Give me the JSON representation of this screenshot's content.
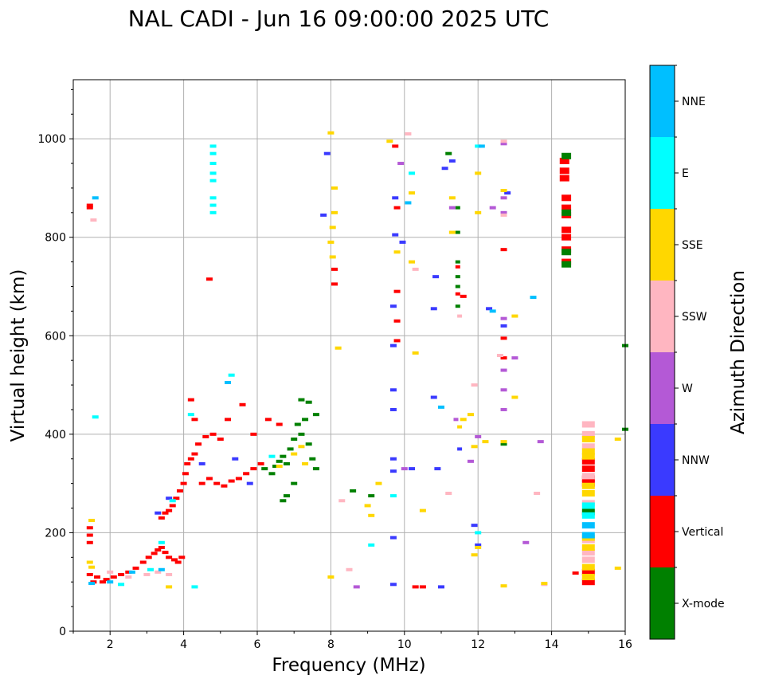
{
  "chart_data": {
    "type": "scatter",
    "title": "NAL CADI - Jun 16 09:00:00 2025 UTC",
    "xlabel": "Frequency (MHz)",
    "ylabel": "Virtual height (km)",
    "xlim": [
      1,
      16
    ],
    "ylim": [
      0,
      1120
    ],
    "xticks": [
      2,
      4,
      6,
      8,
      10,
      12,
      14,
      16
    ],
    "yticks": [
      0,
      200,
      400,
      600,
      800,
      1000
    ],
    "grid": true,
    "colorbar": {
      "label": "Azimuth Direction",
      "placement": "right",
      "categories": [
        {
          "name": "X-mode",
          "color": "#008000"
        },
        {
          "name": "Vertical",
          "color": "#ff0000"
        },
        {
          "name": "NNW",
          "color": "#3a3aff"
        },
        {
          "name": "W",
          "color": "#b459d6"
        },
        {
          "name": "SSW",
          "color": "#ffb6c1"
        },
        {
          "name": "SSE",
          "color": "#ffd700"
        },
        {
          "name": "E",
          "color": "#00ffff"
        },
        {
          "name": "NNE",
          "color": "#00bfff"
        }
      ]
    },
    "series": [
      {
        "name": "Vertical",
        "points": [
          [
            1.45,
            865
          ],
          [
            1.45,
            860
          ],
          [
            1.45,
            210
          ],
          [
            1.45,
            195
          ],
          [
            1.45,
            180
          ],
          [
            1.45,
            115
          ],
          [
            1.55,
            100
          ],
          [
            1.65,
            110
          ],
          [
            1.8,
            100
          ],
          [
            1.9,
            105
          ],
          [
            2.1,
            110
          ],
          [
            2.3,
            115
          ],
          [
            2.5,
            120
          ],
          [
            2.7,
            128
          ],
          [
            2.9,
            140
          ],
          [
            3.05,
            150
          ],
          [
            3.2,
            158
          ],
          [
            3.3,
            165
          ],
          [
            3.4,
            170
          ],
          [
            3.5,
            160
          ],
          [
            3.6,
            150
          ],
          [
            3.75,
            145
          ],
          [
            3.85,
            140
          ],
          [
            3.95,
            150
          ],
          [
            3.4,
            230
          ],
          [
            3.5,
            240
          ],
          [
            3.6,
            245
          ],
          [
            3.7,
            255
          ],
          [
            3.8,
            270
          ],
          [
            3.9,
            285
          ],
          [
            4.0,
            300
          ],
          [
            4.05,
            320
          ],
          [
            4.1,
            340
          ],
          [
            4.2,
            350
          ],
          [
            4.3,
            360
          ],
          [
            4.4,
            380
          ],
          [
            4.2,
            470
          ],
          [
            4.3,
            430
          ],
          [
            4.6,
            395
          ],
          [
            4.8,
            400
          ],
          [
            4.5,
            300
          ],
          [
            4.7,
            310
          ],
          [
            4.9,
            300
          ],
          [
            5.1,
            295
          ],
          [
            5.3,
            305
          ],
          [
            5.5,
            310
          ],
          [
            5.7,
            320
          ],
          [
            5.9,
            330
          ],
          [
            6.1,
            340
          ],
          [
            5.0,
            390
          ],
          [
            5.2,
            430
          ],
          [
            5.6,
            460
          ],
          [
            5.9,
            400
          ],
          [
            6.3,
            430
          ],
          [
            6.6,
            420
          ],
          [
            4.7,
            715
          ],
          [
            8.1,
            735
          ],
          [
            8.1,
            705
          ],
          [
            9.75,
            985
          ],
          [
            9.8,
            860
          ],
          [
            9.8,
            690
          ],
          [
            9.8,
            630
          ],
          [
            9.8,
            590
          ],
          [
            10.3,
            90
          ],
          [
            10.5,
            90
          ],
          [
            11.45,
            740
          ],
          [
            11.45,
            685
          ],
          [
            11.6,
            680
          ],
          [
            12.7,
            775
          ],
          [
            12.7,
            595
          ],
          [
            12.7,
            555
          ],
          [
            14.35,
            955
          ],
          [
            14.35,
            935
          ],
          [
            14.35,
            920
          ],
          [
            14.4,
            880
          ],
          [
            14.4,
            860
          ],
          [
            14.4,
            845
          ],
          [
            14.4,
            815
          ],
          [
            14.4,
            800
          ],
          [
            14.4,
            775
          ],
          [
            14.4,
            750
          ],
          [
            15.0,
            345
          ],
          [
            15.0,
            330
          ],
          [
            15.0,
            310
          ],
          [
            15.0,
            300
          ],
          [
            15.0,
            120
          ],
          [
            15.0,
            100
          ],
          [
            14.65,
            118
          ]
        ]
      },
      {
        "name": "X-mode",
        "points": [
          [
            6.2,
            330
          ],
          [
            6.4,
            320
          ],
          [
            6.5,
            335
          ],
          [
            6.6,
            345
          ],
          [
            6.7,
            355
          ],
          [
            6.8,
            340
          ],
          [
            6.9,
            370
          ],
          [
            7.0,
            390
          ],
          [
            7.1,
            420
          ],
          [
            7.2,
            400
          ],
          [
            7.3,
            430
          ],
          [
            7.4,
            380
          ],
          [
            7.5,
            350
          ],
          [
            7.6,
            330
          ],
          [
            7.0,
            300
          ],
          [
            6.7,
            265
          ],
          [
            6.8,
            275
          ],
          [
            7.2,
            470
          ],
          [
            7.4,
            465
          ],
          [
            7.6,
            440
          ],
          [
            11.45,
            860
          ],
          [
            11.45,
            810
          ],
          [
            11.45,
            750
          ],
          [
            11.45,
            720
          ],
          [
            11.45,
            700
          ],
          [
            11.45,
            660
          ],
          [
            11.2,
            970
          ],
          [
            14.4,
            965
          ],
          [
            14.4,
            850
          ],
          [
            14.4,
            770
          ],
          [
            14.4,
            745
          ],
          [
            15.0,
            242
          ],
          [
            12.7,
            380
          ],
          [
            16.0,
            580
          ],
          [
            16.0,
            410
          ],
          [
            8.6,
            285
          ],
          [
            9.1,
            275
          ]
        ]
      },
      {
        "name": "NNW",
        "points": [
          [
            9.75,
            880
          ],
          [
            9.75,
            805
          ],
          [
            9.7,
            660
          ],
          [
            9.7,
            580
          ],
          [
            9.7,
            450
          ],
          [
            9.7,
            490
          ],
          [
            9.7,
            350
          ],
          [
            9.7,
            325
          ],
          [
            9.7,
            190
          ],
          [
            9.7,
            95
          ],
          [
            9.95,
            790
          ],
          [
            10.2,
            330
          ],
          [
            10.8,
            655
          ],
          [
            10.85,
            720
          ],
          [
            10.9,
            330
          ],
          [
            11.1,
            940
          ],
          [
            11.3,
            955
          ],
          [
            11.0,
            90
          ],
          [
            11.9,
            215
          ],
          [
            12.3,
            655
          ],
          [
            12.7,
            620
          ],
          [
            12.8,
            890
          ],
          [
            7.9,
            970
          ],
          [
            7.8,
            845
          ],
          [
            3.3,
            240
          ],
          [
            3.6,
            270
          ],
          [
            4.5,
            340
          ],
          [
            5.4,
            350
          ],
          [
            5.8,
            300
          ],
          [
            10.8,
            475
          ],
          [
            11.5,
            370
          ],
          [
            12.0,
            175
          ]
        ]
      },
      {
        "name": "W",
        "points": [
          [
            10.0,
            330
          ],
          [
            11.3,
            860
          ],
          [
            12.4,
            860
          ],
          [
            12.7,
            850
          ],
          [
            12.7,
            635
          ],
          [
            12.7,
            530
          ],
          [
            12.7,
            490
          ],
          [
            12.7,
            450
          ],
          [
            12.7,
            880
          ],
          [
            13.0,
            555
          ],
          [
            13.3,
            180
          ],
          [
            13.7,
            385
          ],
          [
            8.7,
            90
          ],
          [
            11.8,
            345
          ],
          [
            12.0,
            395
          ],
          [
            11.4,
            430
          ],
          [
            9.9,
            950
          ],
          [
            12.7,
            990
          ]
        ]
      },
      {
        "name": "SSW",
        "points": [
          [
            1.55,
            835
          ],
          [
            2.0,
            120
          ],
          [
            2.5,
            110
          ],
          [
            3.0,
            115
          ],
          [
            3.3,
            120
          ],
          [
            3.6,
            115
          ],
          [
            11.2,
            280
          ],
          [
            11.5,
            640
          ],
          [
            11.9,
            500
          ],
          [
            12.7,
            845
          ],
          [
            12.7,
            995
          ],
          [
            12.6,
            560
          ],
          [
            13.6,
            280
          ],
          [
            10.3,
            735
          ],
          [
            10.1,
            1010
          ],
          [
            15.0,
            420
          ],
          [
            15.0,
            400
          ],
          [
            15.0,
            375
          ],
          [
            15.0,
            315
          ],
          [
            15.0,
            260
          ],
          [
            15.0,
            185
          ],
          [
            15.0,
            160
          ],
          [
            15.0,
            145
          ],
          [
            8.3,
            265
          ],
          [
            8.5,
            125
          ],
          [
            13.8,
            95
          ]
        ]
      },
      {
        "name": "SSE",
        "points": [
          [
            1.5,
            225
          ],
          [
            1.5,
            130
          ],
          [
            1.45,
            140
          ],
          [
            3.6,
            90
          ],
          [
            8.0,
            1012
          ],
          [
            8.1,
            900
          ],
          [
            8.1,
            850
          ],
          [
            8.05,
            820
          ],
          [
            8.0,
            790
          ],
          [
            8.05,
            760
          ],
          [
            8.2,
            575
          ],
          [
            9.0,
            255
          ],
          [
            9.1,
            235
          ],
          [
            9.3,
            300
          ],
          [
            9.8,
            770
          ],
          [
            10.2,
            890
          ],
          [
            10.2,
            750
          ],
          [
            10.3,
            565
          ],
          [
            10.5,
            245
          ],
          [
            11.3,
            880
          ],
          [
            11.3,
            810
          ],
          [
            11.5,
            415
          ],
          [
            11.6,
            430
          ],
          [
            11.8,
            440
          ],
          [
            11.9,
            375
          ],
          [
            12.0,
            930
          ],
          [
            12.0,
            850
          ],
          [
            12.0,
            170
          ],
          [
            12.2,
            385
          ],
          [
            12.7,
            385
          ],
          [
            12.7,
            895
          ],
          [
            13.0,
            475
          ],
          [
            12.7,
            92
          ],
          [
            13.0,
            640
          ],
          [
            8.0,
            110
          ],
          [
            9.6,
            995
          ],
          [
            13.8,
            97
          ],
          [
            15.0,
            390
          ],
          [
            15.0,
            365
          ],
          [
            15.0,
            355
          ],
          [
            15.0,
            295
          ],
          [
            15.0,
            280
          ],
          [
            15.0,
            190
          ],
          [
            15.0,
            170
          ],
          [
            15.0,
            130
          ],
          [
            15.0,
            110
          ],
          [
            15.8,
            390
          ],
          [
            15.8,
            128
          ],
          [
            7.0,
            360
          ],
          [
            7.2,
            375
          ],
          [
            6.6,
            335
          ],
          [
            7.3,
            340
          ],
          [
            11.9,
            155
          ]
        ]
      },
      {
        "name": "E",
        "points": [
          [
            4.8,
            985
          ],
          [
            4.8,
            970
          ],
          [
            4.8,
            950
          ],
          [
            4.8,
            930
          ],
          [
            4.8,
            915
          ],
          [
            4.8,
            880
          ],
          [
            4.8,
            865
          ],
          [
            4.8,
            850
          ],
          [
            1.6,
            435
          ],
          [
            4.3,
            90
          ],
          [
            2.3,
            95
          ],
          [
            3.1,
            125
          ],
          [
            3.4,
            180
          ],
          [
            3.7,
            265
          ],
          [
            4.2,
            440
          ],
          [
            5.3,
            520
          ],
          [
            6.4,
            355
          ],
          [
            10.2,
            930
          ],
          [
            12.0,
            200
          ],
          [
            15.0,
            255
          ],
          [
            15.0,
            235
          ],
          [
            9.1,
            175
          ],
          [
            9.7,
            275
          ],
          [
            12.0,
            985
          ]
        ]
      },
      {
        "name": "NNE",
        "points": [
          [
            1.6,
            880
          ],
          [
            1.5,
            97
          ],
          [
            2.0,
            100
          ],
          [
            2.6,
            120
          ],
          [
            3.4,
            125
          ],
          [
            5.2,
            505
          ],
          [
            10.1,
            870
          ],
          [
            12.1,
            985
          ],
          [
            12.4,
            650
          ],
          [
            13.5,
            678
          ],
          [
            15.0,
            215
          ],
          [
            15.0,
            195
          ],
          [
            11.0,
            455
          ]
        ]
      }
    ]
  }
}
